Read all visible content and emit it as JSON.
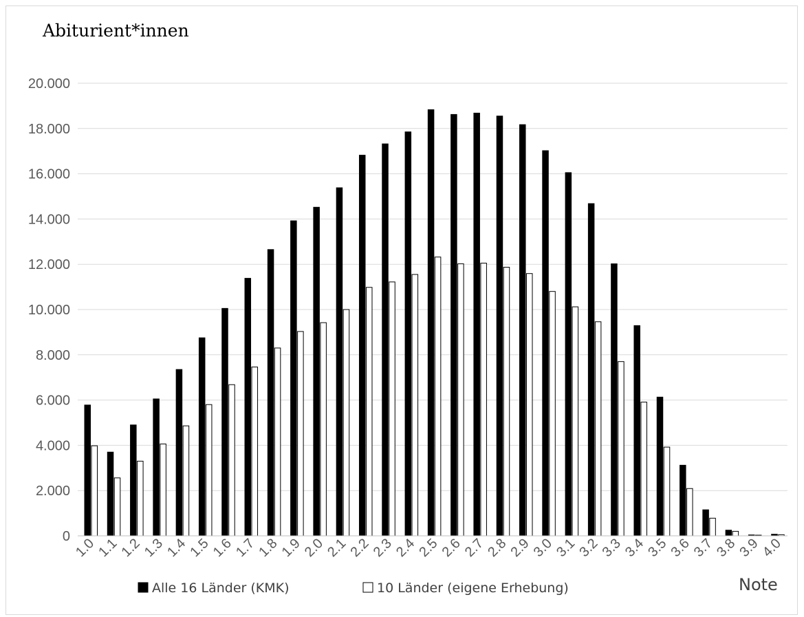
{
  "chart_data": {
    "type": "bar",
    "ylabel": "Abiturient*innen",
    "xlabel": "Note",
    "ylim": [
      0,
      20000
    ],
    "yticks": [
      "0",
      "2.000",
      "4.000",
      "6.000",
      "8.000",
      "10.000",
      "12.000",
      "14.000",
      "16.000",
      "18.000",
      "20.000"
    ],
    "grid": true,
    "legend_position": "bottom",
    "categories": [
      "1.0",
      "1.1",
      "1.2",
      "1.3",
      "1.4",
      "1.5",
      "1.6",
      "1.7",
      "1.8",
      "1.9",
      "2.0",
      "2.1",
      "2.2",
      "2.3",
      "2.4",
      "2.5",
      "2.6",
      "2.7",
      "2.8",
      "2.9",
      "3.0",
      "3.1",
      "3.2",
      "3.3",
      "3.4",
      "3.5",
      "3.6",
      "3.7",
      "3.8",
      "3.9",
      "4.0"
    ],
    "series": [
      {
        "name": "Alle 16 Länder (KMK)",
        "color": "#000000",
        "values": [
          5780,
          3700,
          4900,
          6050,
          7350,
          8750,
          10050,
          11380,
          12650,
          13920,
          14520,
          15380,
          16820,
          17320,
          17850,
          18830,
          18620,
          18680,
          18550,
          18170,
          17020,
          16050,
          14680,
          12020,
          9290,
          6130,
          3120,
          1150,
          250,
          40,
          70
        ]
      },
      {
        "name": "10 Länder (eigene Erhebung)",
        "color": "#ffffff",
        "values": [
          3980,
          2560,
          3300,
          4060,
          4860,
          5800,
          6680,
          7460,
          8300,
          9030,
          9420,
          10000,
          10980,
          11220,
          11550,
          12320,
          12020,
          12050,
          11870,
          11590,
          10800,
          10120,
          9460,
          7700,
          5910,
          3920,
          2090,
          780,
          200,
          30,
          50
        ]
      }
    ]
  }
}
